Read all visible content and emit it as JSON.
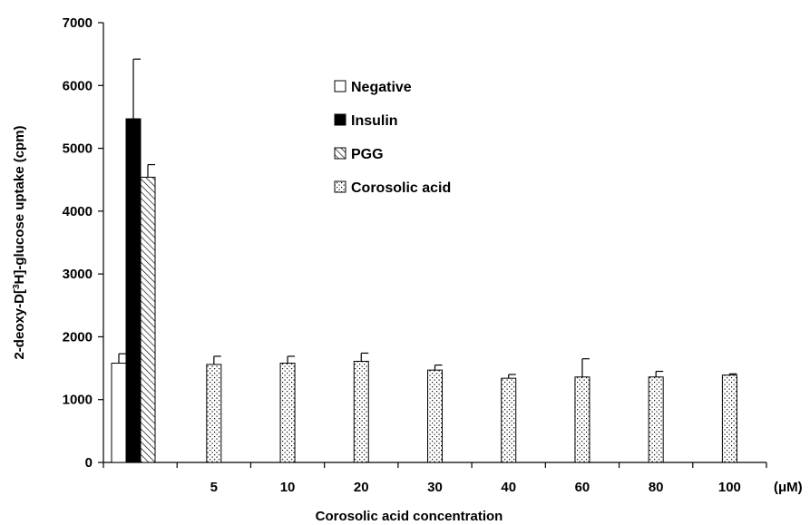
{
  "chart_data": {
    "type": "bar",
    "xlabel": "Corosolic acid concentration",
    "ylabel": "2-deoxy-D[³H]-glucose uptake (cpm)",
    "unit_label": "(μM)",
    "ylim": [
      0,
      7000
    ],
    "yticks": [
      0,
      1000,
      2000,
      3000,
      4000,
      5000,
      6000,
      7000
    ],
    "grid": false,
    "legend_position": "top-center",
    "series": [
      {
        "name": "Negative",
        "pattern": "white"
      },
      {
        "name": "Insulin",
        "pattern": "black"
      },
      {
        "name": "PGG",
        "pattern": "hatch"
      },
      {
        "name": "Corosolic acid",
        "pattern": "dots"
      }
    ],
    "groups": [
      {
        "label": "",
        "bars": [
          {
            "series": "Negative",
            "value": 1580,
            "error": 150
          },
          {
            "series": "Insulin",
            "value": 5470,
            "error": 950
          },
          {
            "series": "PGG",
            "value": 4540,
            "error": 200
          }
        ]
      },
      {
        "label": "5",
        "bars": [
          {
            "series": "Corosolic acid",
            "value": 1560,
            "error": 130
          }
        ]
      },
      {
        "label": "10",
        "bars": [
          {
            "series": "Corosolic acid",
            "value": 1580,
            "error": 110
          }
        ]
      },
      {
        "label": "20",
        "bars": [
          {
            "series": "Corosolic acid",
            "value": 1610,
            "error": 130
          }
        ]
      },
      {
        "label": "30",
        "bars": [
          {
            "series": "Corosolic acid",
            "value": 1470,
            "error": 80
          }
        ]
      },
      {
        "label": "40",
        "bars": [
          {
            "series": "Corosolic acid",
            "value": 1340,
            "error": 60
          }
        ]
      },
      {
        "label": "60",
        "bars": [
          {
            "series": "Corosolic acid",
            "value": 1360,
            "error": 290
          }
        ]
      },
      {
        "label": "80",
        "bars": [
          {
            "series": "Corosolic acid",
            "value": 1360,
            "error": 90
          }
        ]
      },
      {
        "label": "100",
        "bars": [
          {
            "series": "Corosolic acid",
            "value": 1390,
            "error": 20
          }
        ]
      }
    ]
  }
}
